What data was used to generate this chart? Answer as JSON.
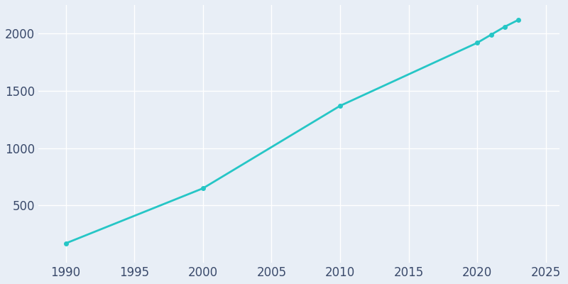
{
  "years": [
    1990,
    2000,
    2010,
    2020,
    2021,
    2022,
    2023
  ],
  "population": [
    170,
    650,
    1370,
    1920,
    1990,
    2060,
    2120
  ],
  "line_color": "#26C6C6",
  "marker": "o",
  "marker_size": 4,
  "line_width": 2,
  "background_color": "#E8EEF6",
  "grid_color": "#ffffff",
  "xlim": [
    1988,
    2026
  ],
  "ylim": [
    0,
    2250
  ],
  "xticks": [
    1990,
    1995,
    2000,
    2005,
    2010,
    2015,
    2020,
    2025
  ],
  "yticks": [
    500,
    1000,
    1500,
    2000
  ],
  "tick_label_color": "#3a4a6b",
  "tick_fontsize": 12,
  "spine_color": "#c0cce0"
}
